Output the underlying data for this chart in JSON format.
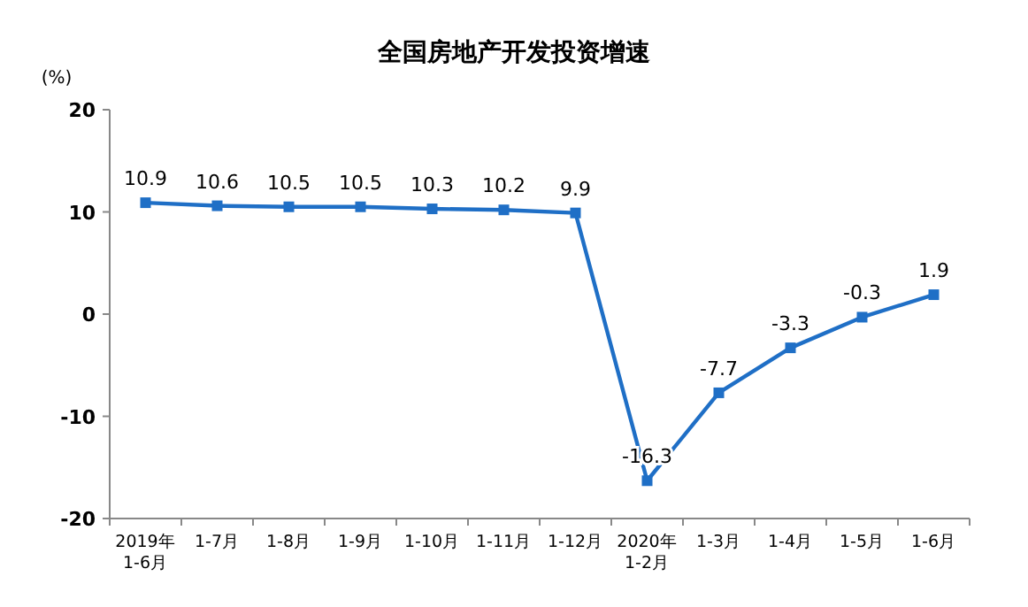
{
  "chart_data": {
    "type": "line",
    "title": "全国房地产开发投资增速",
    "ylabel": "(%)",
    "categories": [
      "2019年\n1-6月",
      "1-7月",
      "1-8月",
      "1-9月",
      "1-10月",
      "1-11月",
      "1-12月",
      "2020年\n1-2月",
      "1-3月",
      "1-4月",
      "1-5月",
      "1-6月"
    ],
    "series": [
      {
        "color": "#1f6fc6",
        "values": [
          10.9,
          10.6,
          10.5,
          10.5,
          10.3,
          10.2,
          9.9,
          -16.3,
          -7.7,
          -3.3,
          -0.3,
          1.9
        ]
      }
    ],
    "ylim": [
      -20,
      20
    ],
    "yticks": [
      -20,
      -10,
      0,
      10,
      20
    ],
    "data_labels": true,
    "marker": "square",
    "grid": false
  }
}
